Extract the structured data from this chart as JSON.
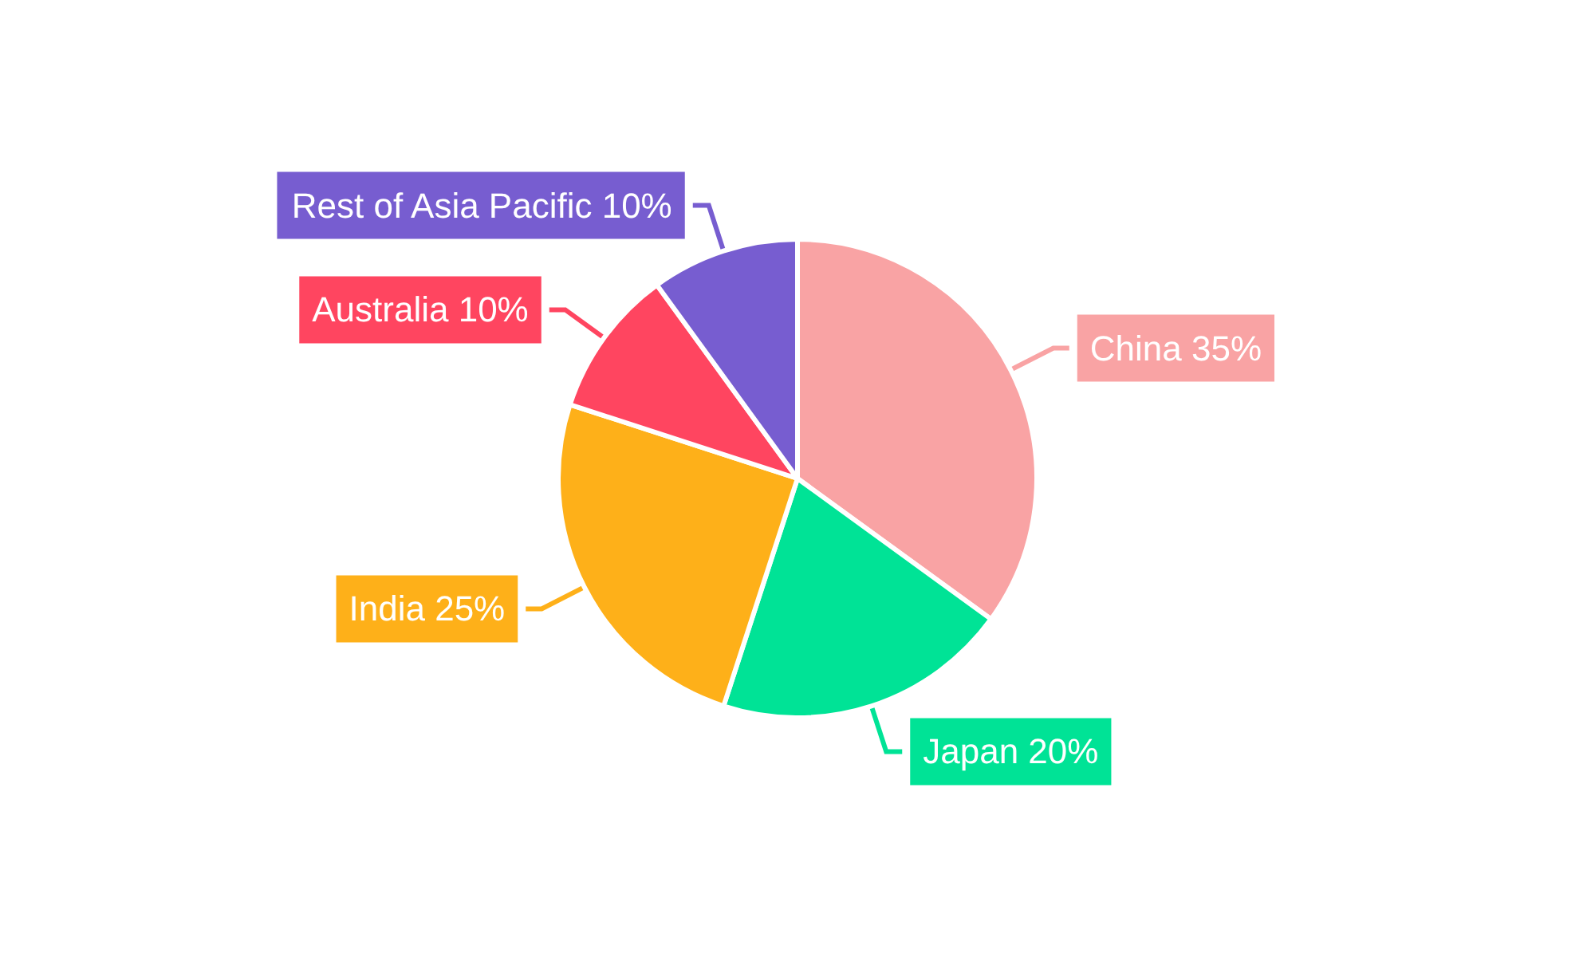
{
  "chart_data": {
    "type": "pie",
    "categories": [
      "China",
      "Japan",
      "India",
      "Australia",
      "Rest of Asia Pacific"
    ],
    "values": [
      35,
      20,
      25,
      10,
      10
    ],
    "value_labels": [
      "35%",
      "20%",
      "25%",
      "10%",
      "10%"
    ],
    "colors": [
      "#f9a3a4",
      "#00e396",
      "#feb019",
      "#ff4560",
      "#775dd0"
    ],
    "legend": false
  }
}
